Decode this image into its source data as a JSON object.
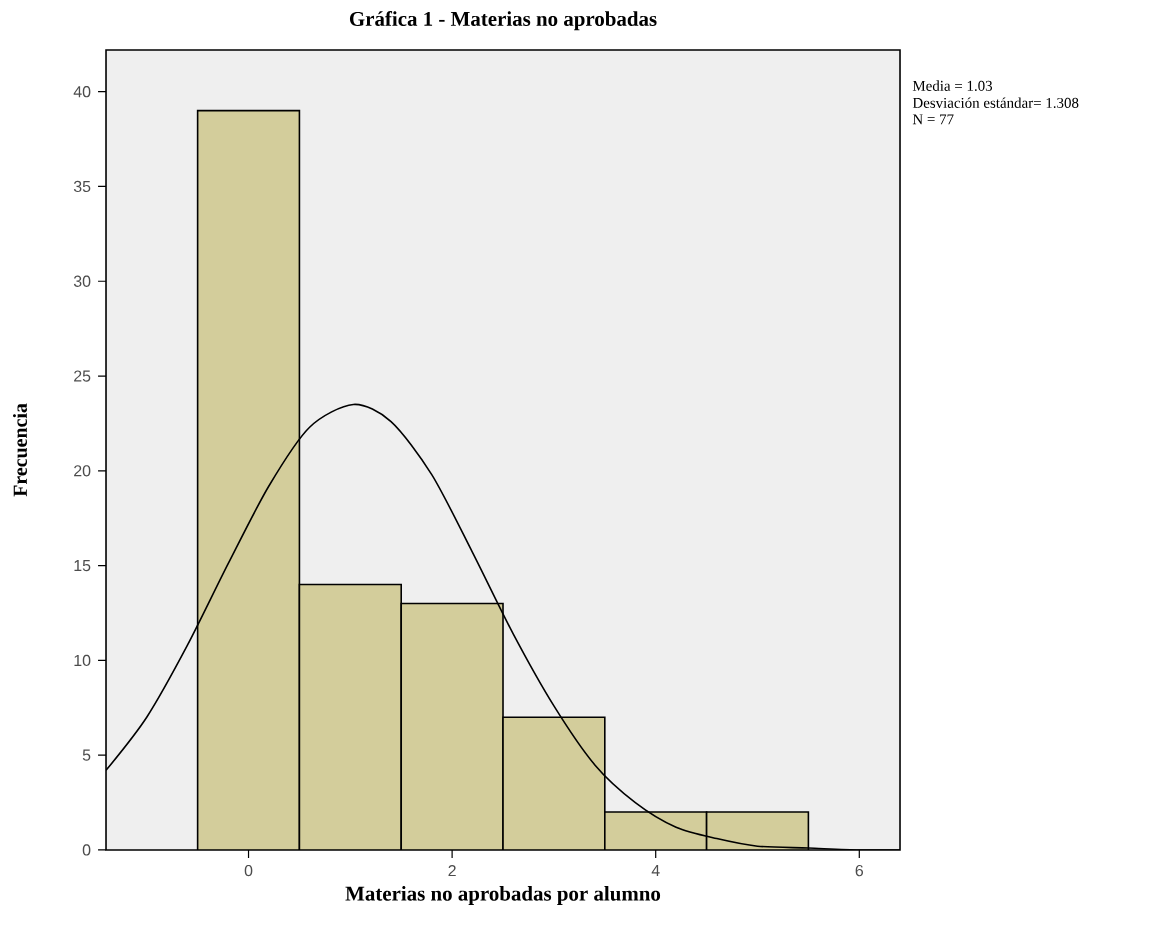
{
  "chart_data": {
    "type": "histogram",
    "title": "Gráfica 1 - Materias no aprobadas",
    "xlabel": "Materias no aprobadas por alumno",
    "ylabel": "Frecuencia",
    "annotations": [
      "Media = 1.03",
      "Desviación estándar= 1.308",
      "N = 77"
    ],
    "series": [
      {
        "type": "histogram",
        "color": "#d3cd9b",
        "bins": [
          -0.5,
          0.5,
          1.5,
          2.5,
          3.5,
          4.5,
          5.5
        ],
        "values": [
          39,
          14,
          13,
          7,
          2,
          2
        ]
      },
      {
        "type": "line",
        "color": "#000000",
        "x": [
          -1.4,
          -1.0,
          -0.6,
          -0.2,
          0.2,
          0.6,
          1.03,
          1.4,
          1.8,
          2.2,
          2.6,
          3.0,
          3.4,
          3.8,
          4.2,
          4.6,
          5.0,
          5.5,
          6.0,
          6.4
        ],
        "values": [
          4.2,
          7.0,
          10.8,
          15.1,
          19.2,
          22.3,
          23.5,
          22.6,
          19.8,
          15.7,
          11.4,
          7.6,
          4.5,
          2.5,
          1.2,
          0.6,
          0.2,
          0.1,
          0,
          0
        ]
      }
    ],
    "xlim": [
      -1.4,
      6.4
    ],
    "ylim": [
      0,
      42.2
    ],
    "xticks": [
      0,
      2,
      4,
      6
    ],
    "yticks": [
      0,
      5,
      10,
      15,
      20,
      25,
      30,
      35,
      40
    ],
    "grid": false
  }
}
